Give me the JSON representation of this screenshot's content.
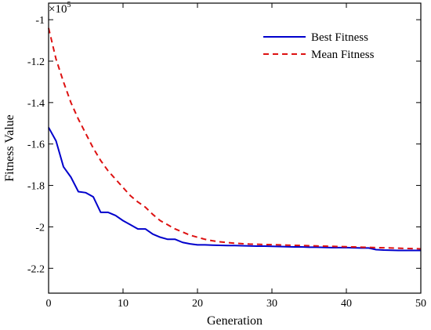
{
  "chart_data": {
    "type": "line",
    "xlabel": "Generation",
    "ylabel": "Fitness Value",
    "y_scale_multiplier": "×10",
    "y_scale_exponent": "5",
    "xlim": [
      0,
      50
    ],
    "ylim": [
      -2.32,
      -0.92
    ],
    "x_ticks": [
      0,
      10,
      20,
      30,
      40,
      50
    ],
    "y_ticks": [
      -2.2,
      -2.0,
      -1.8,
      -1.6,
      -1.4,
      -1.2,
      -1.0
    ],
    "x_tick_labels": [
      "0",
      "10",
      "20",
      "30",
      "40",
      "50"
    ],
    "y_tick_labels": [
      "-2.2",
      "-2",
      "-1.8",
      "-1.6",
      "-1.4",
      "-1.2",
      "-1"
    ],
    "grid": false,
    "legend_position": "top-right",
    "series": [
      {
        "name": "Best Fitness",
        "color": "#0000cc",
        "style": "solid",
        "x": [
          0,
          1,
          2,
          3,
          4,
          5,
          6,
          7,
          8,
          9,
          10,
          11,
          12,
          13,
          14,
          15,
          16,
          17,
          18,
          19,
          20,
          21,
          22,
          23,
          24,
          25,
          26,
          27,
          28,
          29,
          30,
          31,
          32,
          33,
          34,
          35,
          36,
          37,
          38,
          39,
          40,
          41,
          42,
          43,
          44,
          45,
          46,
          47,
          48,
          49,
          50
        ],
        "values": [
          -1.52,
          -1.585,
          -1.71,
          -1.76,
          -1.83,
          -1.835,
          -1.855,
          -1.93,
          -1.93,
          -1.945,
          -1.97,
          -1.99,
          -2.01,
          -2.01,
          -2.035,
          -2.05,
          -2.06,
          -2.06,
          -2.075,
          -2.082,
          -2.087,
          -2.087,
          -2.088,
          -2.089,
          -2.09,
          -2.09,
          -2.091,
          -2.092,
          -2.093,
          -2.093,
          -2.094,
          -2.095,
          -2.096,
          -2.097,
          -2.097,
          -2.098,
          -2.098,
          -2.099,
          -2.1,
          -2.1,
          -2.1,
          -2.101,
          -2.102,
          -2.102,
          -2.11,
          -2.112,
          -2.113,
          -2.114,
          -2.114,
          -2.114,
          -2.114
        ]
      },
      {
        "name": "Mean Fitness",
        "color": "#dd1111",
        "style": "dashed",
        "x": [
          0,
          1,
          2,
          3,
          4,
          5,
          6,
          7,
          8,
          9,
          10,
          11,
          12,
          13,
          14,
          15,
          16,
          17,
          18,
          19,
          20,
          21,
          22,
          23,
          24,
          25,
          26,
          27,
          28,
          29,
          30,
          31,
          32,
          33,
          34,
          35,
          36,
          37,
          38,
          39,
          40,
          41,
          42,
          43,
          44,
          45,
          46,
          47,
          48,
          49,
          50
        ],
        "values": [
          -1.04,
          -1.19,
          -1.3,
          -1.4,
          -1.48,
          -1.55,
          -1.62,
          -1.68,
          -1.73,
          -1.77,
          -1.81,
          -1.85,
          -1.88,
          -1.905,
          -1.94,
          -1.97,
          -1.99,
          -2.01,
          -2.025,
          -2.04,
          -2.05,
          -2.06,
          -2.067,
          -2.072,
          -2.076,
          -2.079,
          -2.081,
          -2.083,
          -2.084,
          -2.085,
          -2.086,
          -2.087,
          -2.088,
          -2.089,
          -2.09,
          -2.091,
          -2.092,
          -2.093,
          -2.094,
          -2.095,
          -2.096,
          -2.097,
          -2.098,
          -2.099,
          -2.1,
          -2.101,
          -2.102,
          -2.103,
          -2.104,
          -2.105,
          -2.106
        ]
      }
    ]
  }
}
